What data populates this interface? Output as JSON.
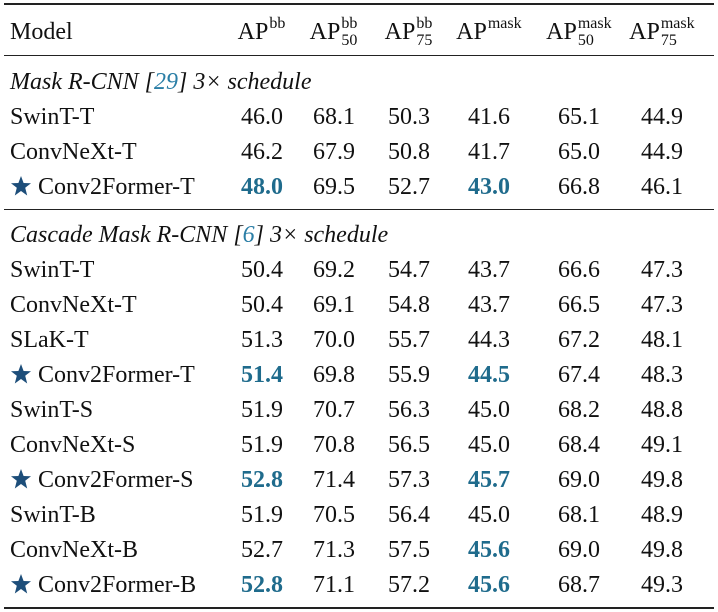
{
  "header": {
    "model": "Model",
    "columns": [
      {
        "base": "AP",
        "sup": "bb"
      },
      {
        "base": "AP",
        "sup": "bb",
        "sub": "50"
      },
      {
        "base": "AP",
        "sup": "bb",
        "sub": "75"
      },
      {
        "base": "AP",
        "sup": "mask"
      },
      {
        "base": "AP",
        "sup": "mask",
        "sub": "50"
      },
      {
        "base": "AP",
        "sup": "mask",
        "sub": "75"
      }
    ]
  },
  "sections": [
    {
      "title": {
        "before": "Mask R-CNN [",
        "ref": "29",
        "after": "] 3× schedule"
      },
      "rows": [
        {
          "model": "SwinT-T",
          "values": [
            "46.0",
            "68.1",
            "50.3",
            "41.6",
            "65.1",
            "44.9"
          ]
        },
        {
          "model": "ConvNeXt-T",
          "values": [
            "46.2",
            "67.9",
            "50.8",
            "41.7",
            "65.0",
            "44.9"
          ]
        },
        {
          "model": "Conv2Former-T",
          "star": true,
          "bold": [
            0,
            3
          ],
          "values": [
            "48.0",
            "69.5",
            "52.7",
            "43.0",
            "66.8",
            "46.1"
          ]
        }
      ]
    },
    {
      "title": {
        "before": "Cascade Mask R-CNN [",
        "ref": "6",
        "after": "] 3× schedule"
      },
      "rows": [
        {
          "model": "SwinT-T",
          "values": [
            "50.4",
            "69.2",
            "54.7",
            "43.7",
            "66.6",
            "47.3"
          ]
        },
        {
          "model": "ConvNeXt-T",
          "values": [
            "50.4",
            "69.1",
            "54.8",
            "43.7",
            "66.5",
            "47.3"
          ]
        },
        {
          "model": "SLaK-T",
          "values": [
            "51.3",
            "70.0",
            "55.7",
            "44.3",
            "67.2",
            "48.1"
          ]
        },
        {
          "model": "Conv2Former-T",
          "star": true,
          "bold": [
            0,
            3
          ],
          "values": [
            "51.4",
            "69.8",
            "55.9",
            "44.5",
            "67.4",
            "48.3"
          ]
        },
        {
          "model": "SwinT-S",
          "values": [
            "51.9",
            "70.7",
            "56.3",
            "45.0",
            "68.2",
            "48.8"
          ]
        },
        {
          "model": "ConvNeXt-S",
          "values": [
            "51.9",
            "70.8",
            "56.5",
            "45.0",
            "68.4",
            "49.1"
          ]
        },
        {
          "model": "Conv2Former-S",
          "star": true,
          "bold": [
            0,
            3
          ],
          "values": [
            "52.8",
            "71.4",
            "57.3",
            "45.7",
            "69.0",
            "49.8"
          ]
        },
        {
          "model": "SwinT-B",
          "values": [
            "51.9",
            "70.5",
            "56.4",
            "45.0",
            "68.1",
            "48.9"
          ]
        },
        {
          "model": "ConvNeXt-B",
          "bold": [
            3
          ],
          "values": [
            "52.7",
            "71.3",
            "57.5",
            "45.6",
            "69.0",
            "49.8"
          ]
        },
        {
          "model": "Conv2Former-B",
          "star": true,
          "bold": [
            0,
            3
          ],
          "values": [
            "52.8",
            "71.1",
            "57.2",
            "45.6",
            "68.7",
            "49.3"
          ]
        }
      ]
    }
  ]
}
